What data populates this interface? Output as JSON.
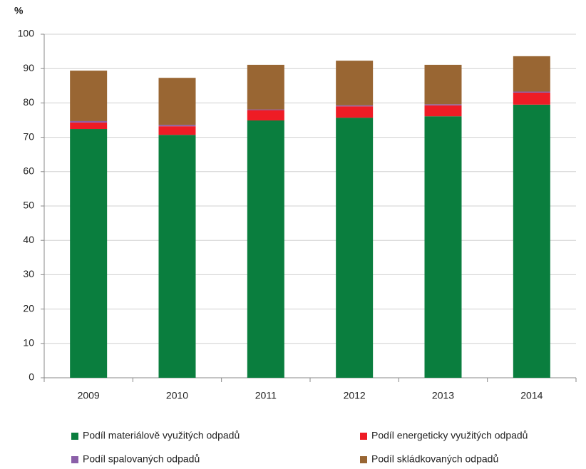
{
  "chart_data": {
    "type": "stacked_bar",
    "y_label": "%",
    "categories": [
      "2009",
      "2010",
      "2011",
      "2012",
      "2013",
      "2014"
    ],
    "series": [
      {
        "name": "Podíl materiálově využitých odpadů",
        "color": "#0a7e3e",
        "values": [
          72.4,
          70.7,
          74.9,
          75.7,
          76.1,
          79.5
        ]
      },
      {
        "name": "Podíl energeticky využitých odpadů",
        "color": "#ee1c25",
        "values": [
          1.9,
          2.5,
          3.0,
          3.3,
          3.2,
          3.5
        ]
      },
      {
        "name": "Podíl spalovaných odpadů",
        "color": "#8b5fa8",
        "values": [
          0.4,
          0.4,
          0.2,
          0.3,
          0.3,
          0.3
        ]
      },
      {
        "name": "Podíl skládkovaných odpadů",
        "color": "#996633",
        "values": [
          14.7,
          13.7,
          13.0,
          13.0,
          11.5,
          10.3
        ]
      }
    ],
    "ylim": [
      0,
      100
    ],
    "yticks": [
      0,
      10,
      20,
      30,
      40,
      50,
      60,
      70,
      80,
      90,
      100
    ],
    "grid": true
  }
}
